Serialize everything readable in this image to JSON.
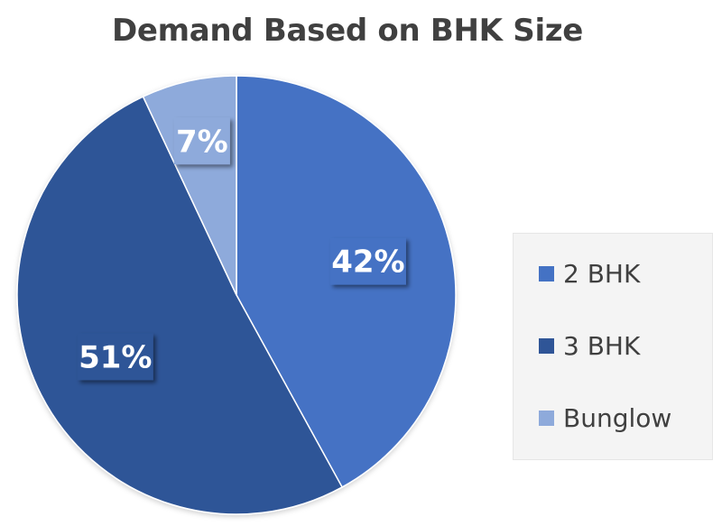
{
  "chart_data": {
    "type": "pie",
    "title": "Demand Based on BHK Size",
    "categories": [
      "2 BHK",
      "3 BHK",
      "Bunglow"
    ],
    "values": [
      42,
      51,
      7
    ],
    "data_labels": [
      "42%",
      "51%",
      "7%"
    ],
    "colors": [
      "#4472c4",
      "#2f5597",
      "#8eaadb"
    ],
    "legend_position": "right"
  }
}
